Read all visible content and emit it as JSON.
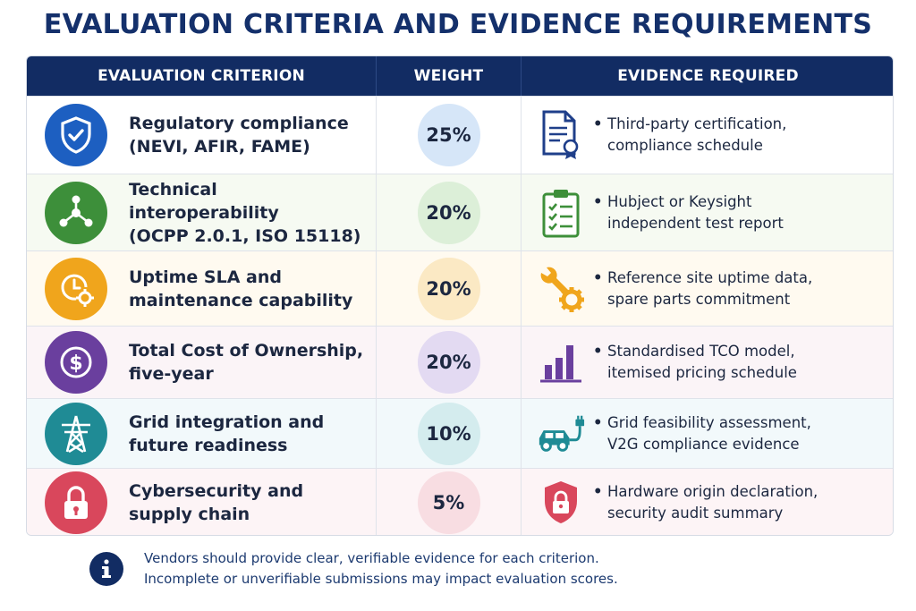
{
  "title": "EVALUATION CRITERIA AND EVIDENCE REQUIREMENTS",
  "headers": {
    "criterion": "EVALUATION CRITERION",
    "weight": "WEIGHT",
    "evidence": "EVIDENCE REQUIRED"
  },
  "rows": [
    {
      "criterion_line1": "Regulatory compliance",
      "criterion_line2": "(NEVI, AFIR, FAME)",
      "weight": "25%",
      "evidence_line1": "Third-party certification,",
      "evidence_line2": "compliance schedule",
      "criterion_icon": "shield-check-icon",
      "evidence_icon": "certificate-document-icon",
      "icon_color": "#1d5fc1",
      "weight_bg": "#d6e6f8",
      "row_bg": "#ffffff"
    },
    {
      "criterion_line1": "Technical interoperability",
      "criterion_line2": "(OCPP 2.0.1, ISO 15118)",
      "weight": "20%",
      "evidence_line1": "Hubject or Keysight",
      "evidence_line2": "independent test report",
      "criterion_icon": "network-nodes-icon",
      "evidence_icon": "clipboard-checklist-icon",
      "icon_color": "#3d8f3a",
      "weight_bg": "#dcefd8",
      "row_bg": "#f6faf2"
    },
    {
      "criterion_line1": "Uptime SLA and",
      "criterion_line2": "maintenance capability",
      "weight": "20%",
      "evidence_line1": "Reference site uptime data,",
      "evidence_line2": "spare parts commitment",
      "criterion_icon": "clock-gear-icon",
      "evidence_icon": "wrench-gear-icon",
      "icon_color": "#f0a51c",
      "weight_bg": "#fbe9c4",
      "row_bg": "#fffaf0"
    },
    {
      "criterion_line1": "Total Cost of Ownership,",
      "criterion_line2": "five-year",
      "weight": "20%",
      "evidence_line1": "Standardised TCO model,",
      "evidence_line2": "itemised pricing schedule",
      "criterion_icon": "dollar-coin-icon",
      "evidence_icon": "bar-chart-icon",
      "icon_color": "#6a3f9e",
      "weight_bg": "#e3daf2",
      "row_bg": "#fbf4f7"
    },
    {
      "criterion_line1": "Grid integration and",
      "criterion_line2": "future readiness",
      "weight": "10%",
      "evidence_line1": "Grid feasibility assessment,",
      "evidence_line2": "V2G compliance evidence",
      "criterion_icon": "power-tower-icon",
      "evidence_icon": "electric-car-plug-icon",
      "icon_color": "#1f8b95",
      "weight_bg": "#d4ecee",
      "row_bg": "#f2f9fb"
    },
    {
      "criterion_line1": "Cybersecurity and",
      "criterion_line2": "supply chain",
      "weight": "5%",
      "evidence_line1": "Hardware origin declaration,",
      "evidence_line2": "security audit summary",
      "criterion_icon": "padlock-icon",
      "evidence_icon": "shield-lock-icon",
      "icon_color": "#d9475c",
      "weight_bg": "#f8dde2",
      "row_bg": "#fdf4f6"
    }
  ],
  "footer": {
    "line1": "Vendors should provide clear, verifiable evidence for each criterion.",
    "line2": "Incomplete or unverifiable submissions may impact evaluation scores.",
    "icon": "info-icon"
  }
}
